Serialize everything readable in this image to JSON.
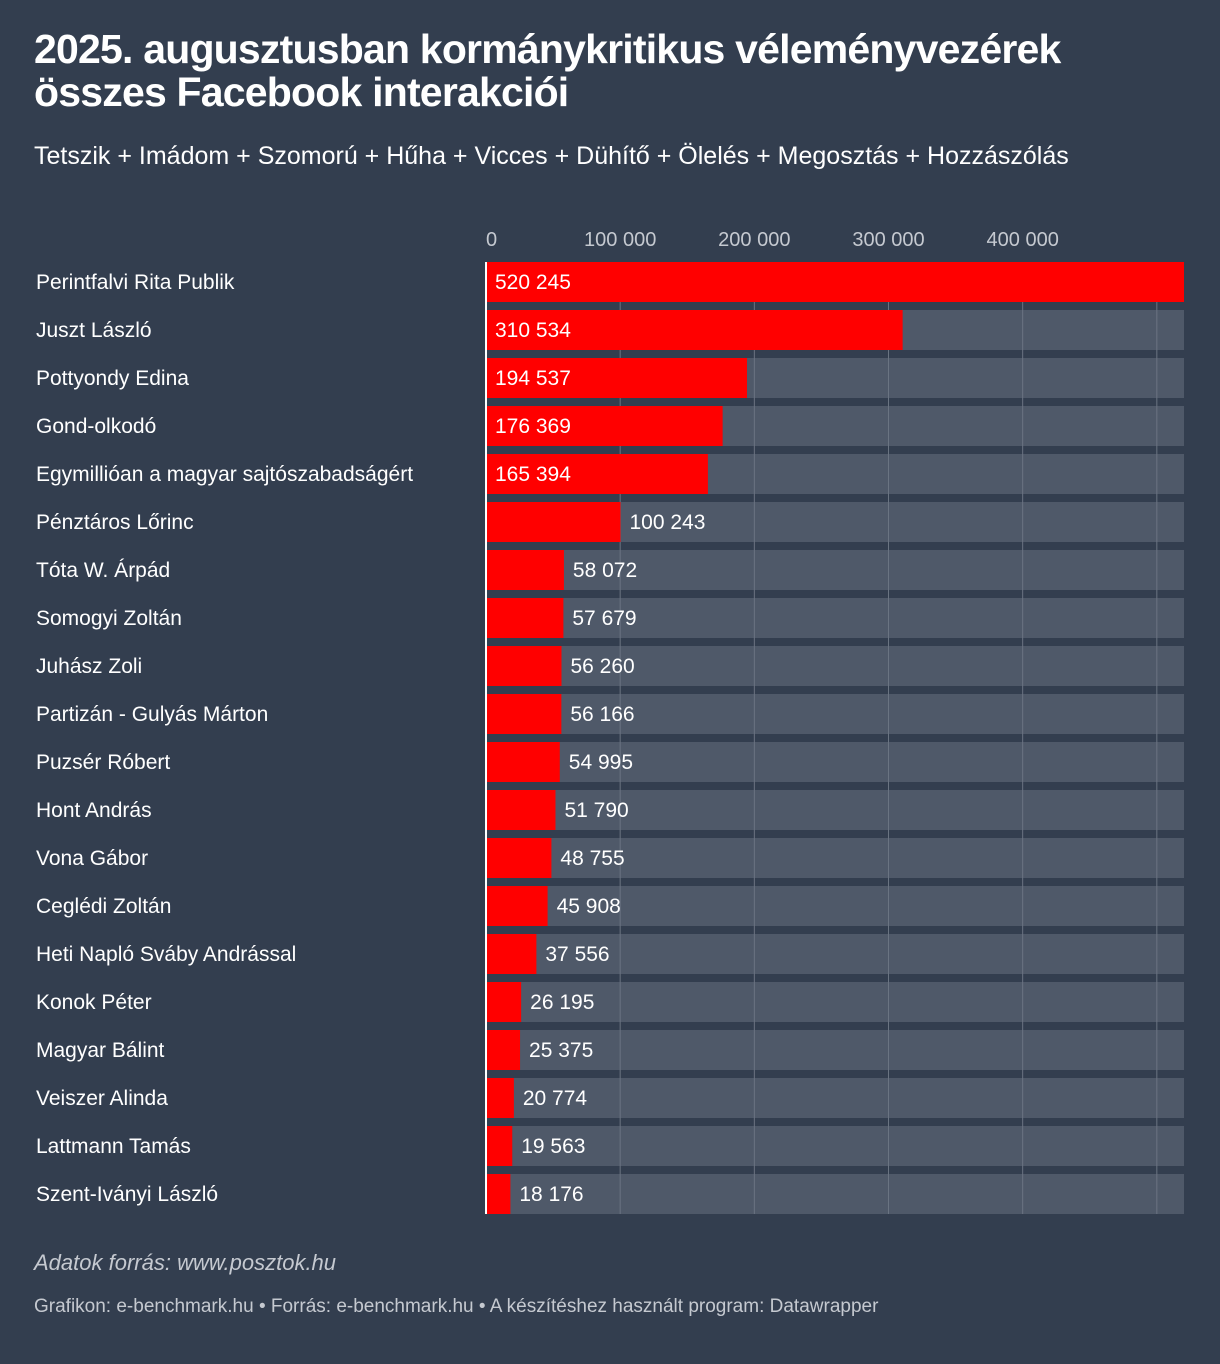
{
  "header": {
    "title": "2025. augusztusban kormánykritikus véleményvezérek összes Facebook interakciói",
    "subtitle": "Tetszik + Imádom + Szomorú + Hűha + Vicces + Dühítő + Ölelés + Megosztás + Hozzászólás"
  },
  "footer": {
    "source_note": "Adatok forrás: www.posztok.hu",
    "credits": "Grafikon: e-benchmark.hu • Forrás: e-benchmark.hu • A készítéshez használt program: Datawrapper"
  },
  "colors": {
    "background": "#333e4f",
    "bar": "#ff0000",
    "bar_track": "#4f5969",
    "gridline": "#6b7482",
    "tick_label": "#c5c9d0"
  },
  "chart_data": {
    "type": "bar",
    "orientation": "horizontal",
    "xlim": [
      0,
      520245
    ],
    "x_ticks": [
      0,
      100000,
      200000,
      300000,
      400000
    ],
    "x_tick_labels": [
      "0",
      "100 000",
      "200 000",
      "300 000",
      "400 000"
    ],
    "grid": true,
    "categories": [
      "Perintfalvi Rita Publik",
      "Juszt László",
      "Pottyondy Edina",
      "Gond-olkodó",
      "Egymillióan a magyar sajtószabadságért",
      "Pénztáros Lőrinc",
      "Tóta W. Árpád",
      "Somogyi Zoltán",
      "Juhász Zoli",
      "Partizán - Gulyás Márton",
      "Puzsér Róbert",
      "Hont András",
      "Vona Gábor",
      "Ceglédi Zoltán",
      "Heti Napló Sváby Andrással",
      "Konok Péter",
      "Magyar Bálint",
      "Veiszer Alinda",
      "Lattmann Tamás",
      "Szent-Iványi László"
    ],
    "values": [
      520245,
      310534,
      194537,
      176369,
      165394,
      100243,
      58072,
      57679,
      56260,
      56166,
      54995,
      51790,
      48755,
      45908,
      37556,
      26195,
      25375,
      20774,
      19563,
      18176
    ],
    "value_labels": [
      "520 245",
      "310 534",
      "194 537",
      "176 369",
      "165 394",
      "100 243",
      "58 072",
      "57 679",
      "56 260",
      "56 166",
      "54 995",
      "51 790",
      "48 755",
      "45 908",
      "37 556",
      "26 195",
      "25 375",
      "20 774",
      "19 563",
      "18 176"
    ]
  }
}
